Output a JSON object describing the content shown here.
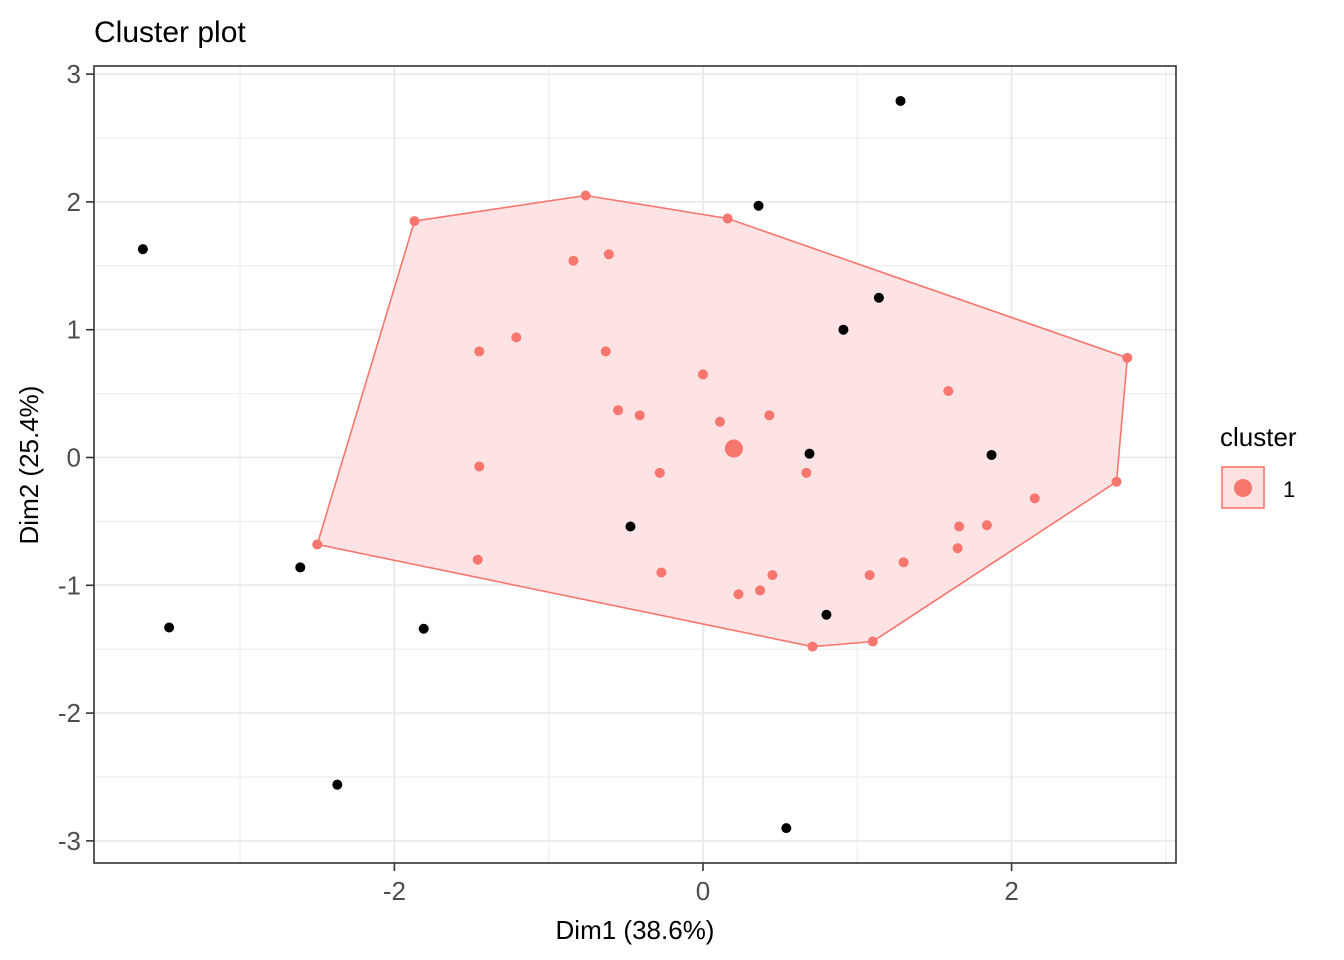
{
  "chart_data": {
    "type": "scatter",
    "title": "Cluster plot",
    "xlabel": "Dim1 (38.6%)",
    "ylabel": "Dim2 (25.4%)",
    "xlim": [
      -3.88,
      3.12
    ],
    "ylim": [
      -3.16,
      3.07
    ],
    "xticks": [
      -2,
      0,
      2
    ],
    "yticks": [
      -3,
      -2,
      -1,
      0,
      1,
      2,
      3
    ],
    "grid": true,
    "legend": {
      "title": "cluster",
      "position": "right",
      "entries": [
        {
          "label": "1",
          "color": "#F8766D"
        }
      ]
    },
    "cluster_color": "#F8766D",
    "cluster_fill": "#FDE2E1",
    "outlier_color": "#000000",
    "cluster_points": [
      [
        -1.87,
        1.85
      ],
      [
        -0.76,
        2.05
      ],
      [
        0.16,
        1.87
      ],
      [
        -0.84,
        1.54
      ],
      [
        -0.61,
        1.59
      ],
      [
        -1.45,
        0.83
      ],
      [
        -1.21,
        0.94
      ],
      [
        -0.63,
        0.83
      ],
      [
        0.0,
        0.65
      ],
      [
        -0.55,
        0.37
      ],
      [
        -0.41,
        0.33
      ],
      [
        0.11,
        0.28
      ],
      [
        0.43,
        0.33
      ],
      [
        1.59,
        0.52
      ],
      [
        2.75,
        0.78
      ],
      [
        0.67,
        -0.12
      ],
      [
        2.68,
        -0.19
      ],
      [
        2.15,
        -0.32
      ],
      [
        1.66,
        -0.54
      ],
      [
        1.84,
        -0.53
      ],
      [
        1.65,
        -0.71
      ],
      [
        1.3,
        -0.82
      ],
      [
        1.08,
        -0.92
      ],
      [
        0.45,
        -0.92
      ],
      [
        0.37,
        -1.04
      ],
      [
        0.23,
        -1.07
      ],
      [
        0.71,
        -1.48
      ],
      [
        1.1,
        -1.44
      ],
      [
        -1.45,
        -0.07
      ],
      [
        -0.28,
        -0.12
      ],
      [
        -2.5,
        -0.68
      ],
      [
        -1.46,
        -0.8
      ],
      [
        -0.27,
        -0.9
      ]
    ],
    "hull": [
      [
        -1.87,
        1.85
      ],
      [
        -0.76,
        2.05
      ],
      [
        0.16,
        1.87
      ],
      [
        2.75,
        0.78
      ],
      [
        2.68,
        -0.19
      ],
      [
        1.1,
        -1.44
      ],
      [
        0.71,
        -1.48
      ],
      [
        -2.5,
        -0.68
      ]
    ],
    "centroid": [
      0.2,
      0.07
    ],
    "outliers": [
      [
        -3.63,
        1.63
      ],
      [
        1.28,
        2.79
      ],
      [
        0.36,
        1.97
      ],
      [
        1.14,
        1.25
      ],
      [
        0.91,
        1.0
      ],
      [
        0.69,
        0.03
      ],
      [
        1.87,
        0.02
      ],
      [
        -0.47,
        -0.54
      ],
      [
        -2.61,
        -0.86
      ],
      [
        -3.46,
        -1.33
      ],
      [
        -1.81,
        -1.34
      ],
      [
        0.8,
        -1.23
      ],
      [
        -2.37,
        -2.56
      ],
      [
        0.54,
        -2.9
      ]
    ]
  }
}
